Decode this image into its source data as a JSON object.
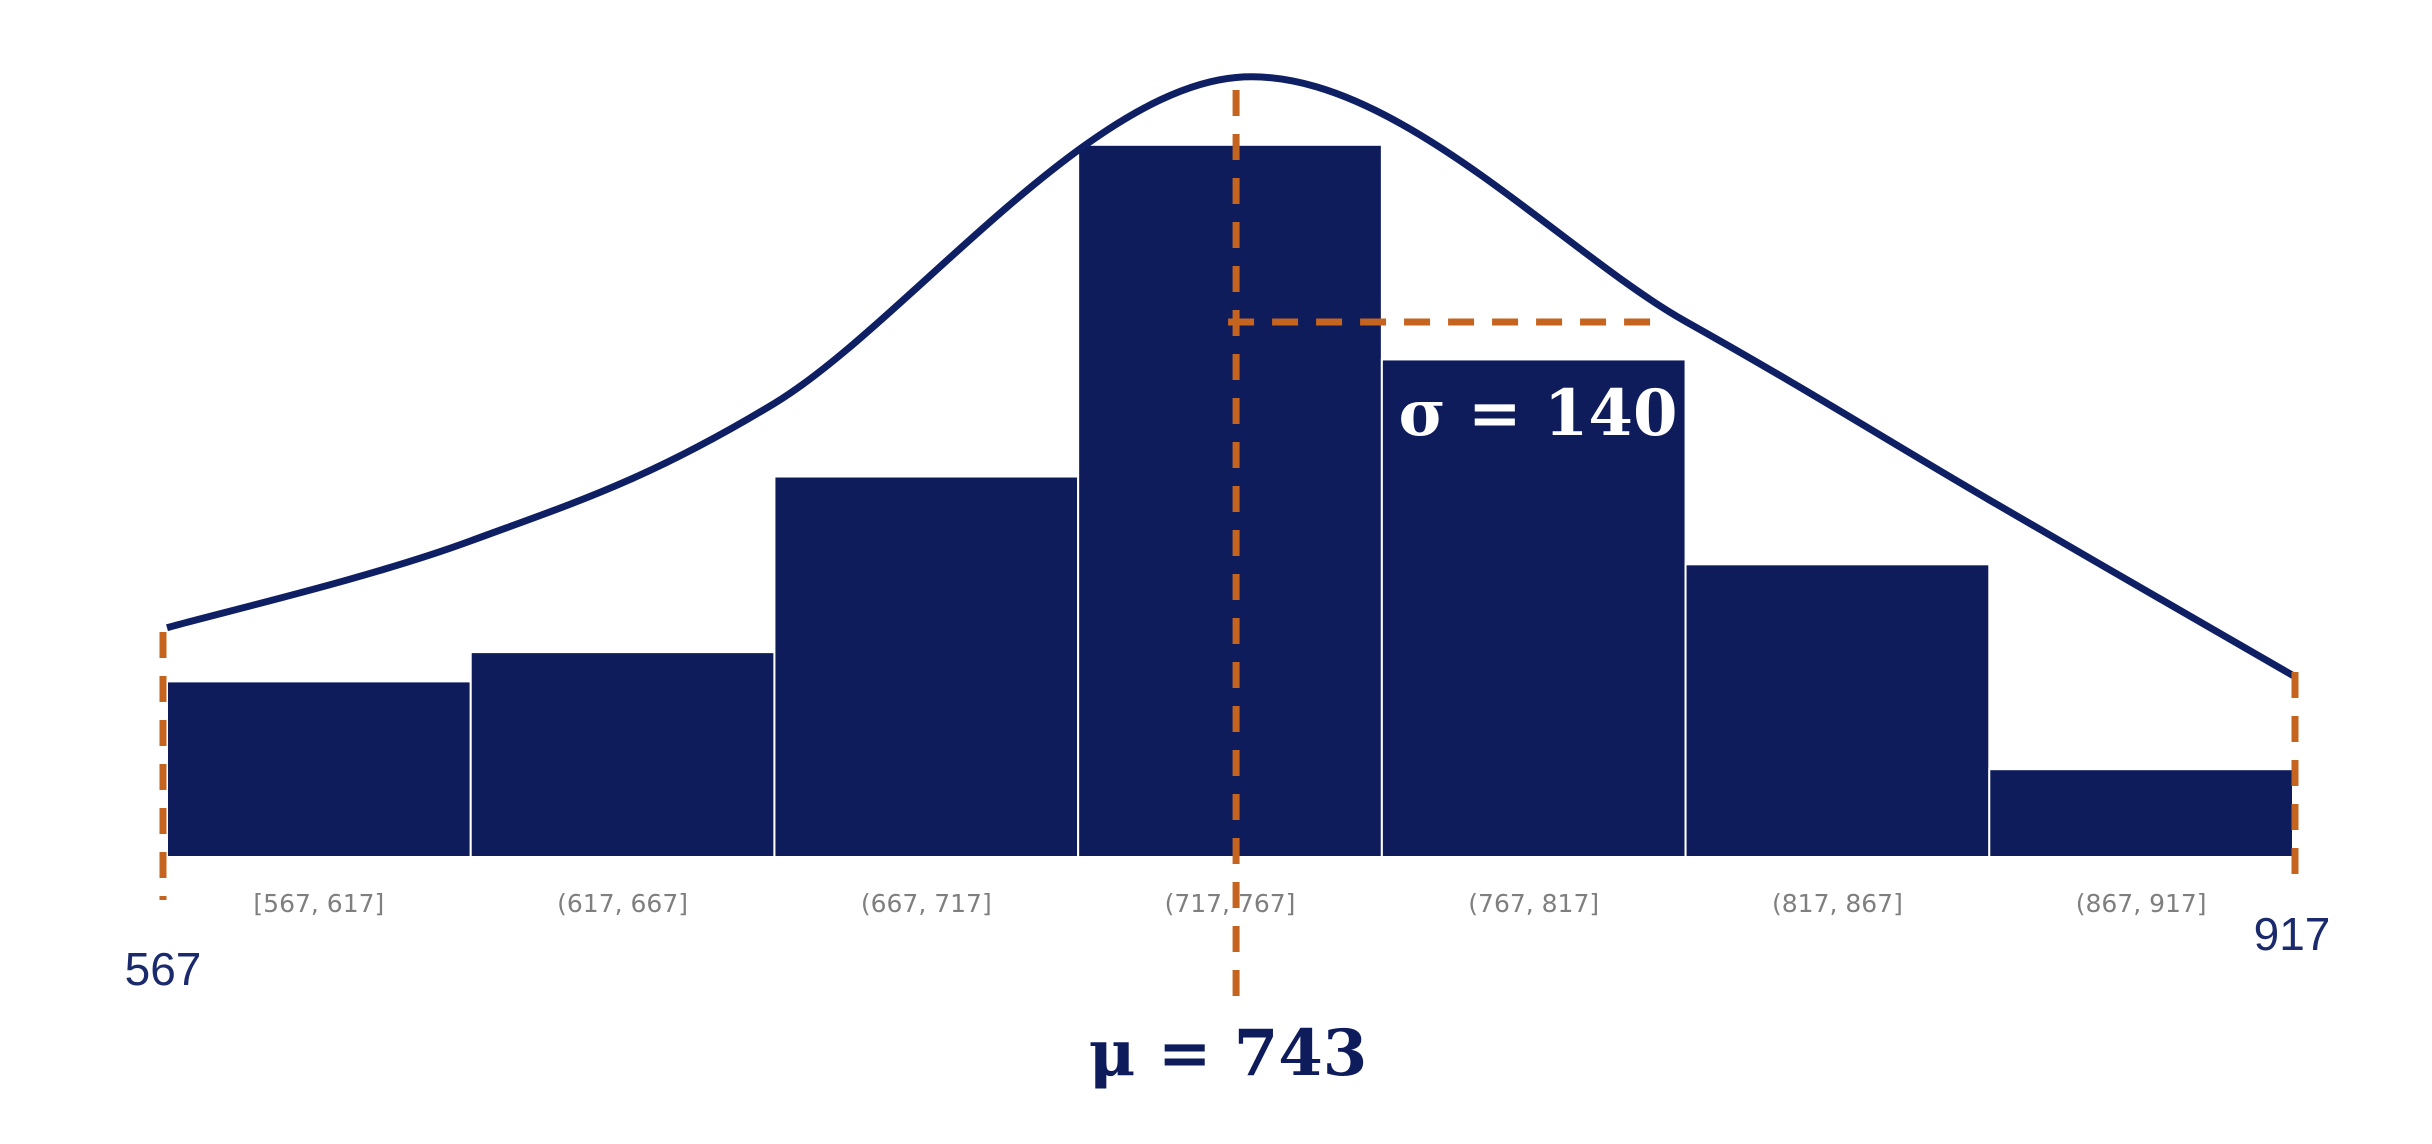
{
  "chart_data": {
    "type": "bar",
    "categories": [
      "[567, 617]",
      "(617, 667]",
      "(667, 717]",
      "(717, 767]",
      "(767, 817]",
      "(817, 867]",
      "(867, 917]"
    ],
    "values": [
      18,
      21,
      39,
      73,
      51,
      30,
      9
    ],
    "bins": [
      [
        567,
        617
      ],
      [
        617,
        667
      ],
      [
        667,
        717
      ],
      [
        717,
        767
      ],
      [
        767,
        817
      ],
      [
        817,
        867
      ],
      [
        867,
        917
      ]
    ],
    "ylim": [
      0,
      82
    ],
    "title": "",
    "xlabel": "",
    "ylabel": "",
    "grid": false,
    "legend": "none",
    "range_min": 567,
    "range_max": 917,
    "range_min_label": "567",
    "range_max_label": "917",
    "mean": 743,
    "std": 140,
    "mean_label": "μ = 743",
    "std_label": "σ = 140",
    "curve": {
      "type": "normal-density-overlay",
      "x": [
        567,
        617,
        667,
        743,
        817,
        867,
        917
      ],
      "y": [
        23.5,
        32.4,
        46.5,
        79.9,
        54.9,
        36.6,
        18.6
      ]
    }
  },
  "colors": {
    "bar_fill": "#0e1c5c",
    "bar_edge": "#ffffff",
    "curve": "#0f1f63",
    "marker": "#c4641e",
    "bin_label": "#7f7f7f",
    "endpoint_label": "#1a2a6c",
    "std_label": "#ffffff",
    "mean_label": "#0e1c5c"
  }
}
